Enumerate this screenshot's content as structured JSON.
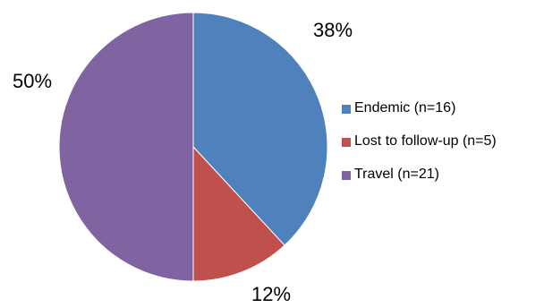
{
  "chart_data": {
    "type": "pie",
    "title": "",
    "start_angle_deg": 0,
    "direction": "clockwise",
    "slices": [
      {
        "label": "Endemic (n=16)",
        "value": 16,
        "percent_label": "38%",
        "color": "#4F81BD"
      },
      {
        "label": "Lost to follow-up (n=5)",
        "value": 5,
        "percent_label": "12%",
        "color": "#C0504D"
      },
      {
        "label": "Travel (n=21)",
        "value": 21,
        "percent_label": "50%",
        "color": "#8064A2"
      }
    ],
    "legend_position": "right"
  }
}
